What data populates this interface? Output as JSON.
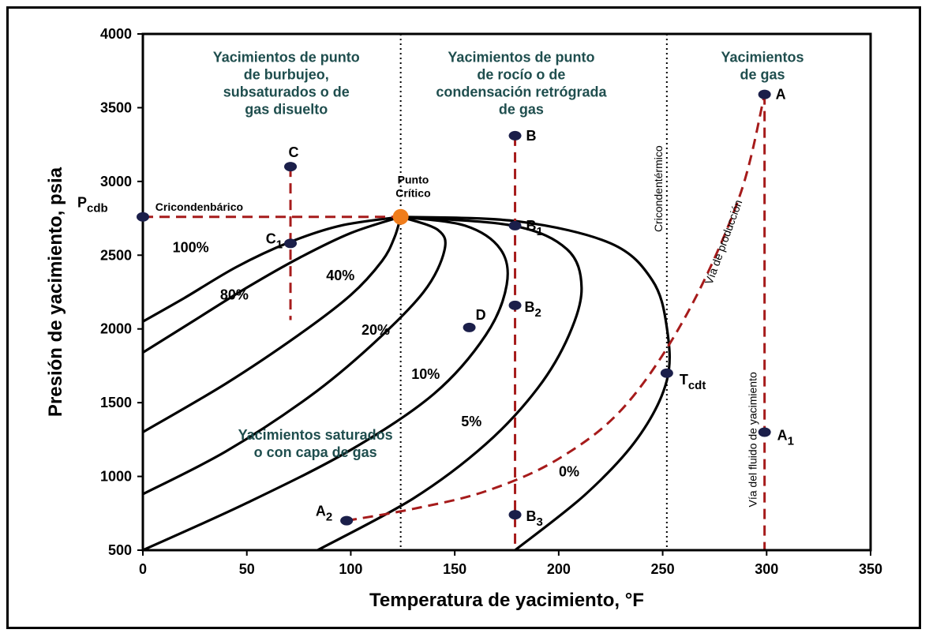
{
  "chart_data": {
    "type": "line",
    "title": "",
    "xlabel": "Temperatura de yacimiento, °F",
    "ylabel": "Presión de yacimiento, psia",
    "xlim": [
      0,
      350
    ],
    "ylim": [
      500,
      4000
    ],
    "x_ticks": [
      0,
      50,
      100,
      150,
      200,
      250,
      300,
      350
    ],
    "y_ticks": [
      500,
      1000,
      1500,
      2000,
      2500,
      3000,
      3500,
      4000
    ],
    "critical_point": {
      "x": 124,
      "y": 2760,
      "label": "Punto Crítico"
    },
    "cricondenbar": {
      "label_main": "P",
      "label_sub": "cdb",
      "text": "Cricondenbárico",
      "y": 2760
    },
    "cricondentherm": {
      "label_main": "T",
      "label_sub": "cdt",
      "text": "Cricondentérmico",
      "x": 252,
      "y": 1700
    },
    "series": [
      {
        "name": "100%",
        "points": [
          [
            0,
            2050
          ],
          [
            20,
            2210
          ],
          [
            45,
            2420
          ],
          [
            70,
            2585
          ],
          [
            95,
            2700
          ],
          [
            124,
            2760
          ]
        ]
      },
      {
        "name": "80%",
        "points": [
          [
            0,
            1840
          ],
          [
            25,
            2060
          ],
          [
            50,
            2280
          ],
          [
            75,
            2480
          ],
          [
            100,
            2650
          ],
          [
            124,
            2760
          ]
        ]
      },
      {
        "name": "40%",
        "points": [
          [
            0,
            1300
          ],
          [
            40,
            1630
          ],
          [
            75,
            1960
          ],
          [
            100,
            2230
          ],
          [
            115,
            2460
          ],
          [
            121,
            2620
          ],
          [
            124,
            2760
          ]
        ]
      },
      {
        "name": "20%",
        "points": [
          [
            0,
            880
          ],
          [
            40,
            1170
          ],
          [
            80,
            1540
          ],
          [
            110,
            1890
          ],
          [
            135,
            2250
          ],
          [
            145,
            2530
          ],
          [
            142,
            2670
          ],
          [
            124,
            2760
          ]
        ]
      },
      {
        "name": "10%",
        "points": [
          [
            0,
            500
          ],
          [
            50,
            820
          ],
          [
            100,
            1180
          ],
          [
            140,
            1560
          ],
          [
            165,
            1960
          ],
          [
            175,
            2300
          ],
          [
            172,
            2540
          ],
          [
            155,
            2700
          ],
          [
            124,
            2760
          ]
        ]
      },
      {
        "name": "5%",
        "points": [
          [
            84,
            500
          ],
          [
            130,
            850
          ],
          [
            165,
            1220
          ],
          [
            190,
            1600
          ],
          [
            205,
            1960
          ],
          [
            211,
            2280
          ],
          [
            204,
            2540
          ],
          [
            178,
            2700
          ],
          [
            124,
            2760
          ]
        ]
      },
      {
        "name": "0%",
        "points": [
          [
            179,
            500
          ],
          [
            213,
            880
          ],
          [
            238,
            1260
          ],
          [
            252,
            1650
          ],
          [
            252,
            2010
          ],
          [
            245,
            2330
          ],
          [
            225,
            2580
          ],
          [
            180,
            2730
          ],
          [
            124,
            2760
          ]
        ]
      }
    ],
    "curve_labels": [
      {
        "text": "100%",
        "x": 23,
        "y": 2520
      },
      {
        "text": "80%",
        "x": 44,
        "y": 2200
      },
      {
        "text": "40%",
        "x": 95,
        "y": 2330
      },
      {
        "text": "20%",
        "x": 112,
        "y": 1960
      },
      {
        "text": "10%",
        "x": 136,
        "y": 1660
      },
      {
        "text": "5%",
        "x": 158,
        "y": 1340
      },
      {
        "text": "0%",
        "x": 205,
        "y": 1000
      }
    ],
    "points": [
      {
        "label": "A",
        "sub": "",
        "x": 299,
        "y": 3590
      },
      {
        "label": "A",
        "sub": "1",
        "x": 299,
        "y": 1300
      },
      {
        "label": "A",
        "sub": "2",
        "x": 98,
        "y": 700
      },
      {
        "label": "B",
        "sub": "",
        "x": 179,
        "y": 3310
      },
      {
        "label": "B",
        "sub": "1",
        "x": 179,
        "y": 2700
      },
      {
        "label": "B",
        "sub": "2",
        "x": 179,
        "y": 2160
      },
      {
        "label": "B",
        "sub": "3",
        "x": 179,
        "y": 740
      },
      {
        "label": "C",
        "sub": "",
        "x": 71,
        "y": 3100
      },
      {
        "label": "C",
        "sub": "1",
        "x": 71,
        "y": 2580
      },
      {
        "label": "D",
        "sub": "",
        "x": 157,
        "y": 2010
      },
      {
        "label": "P",
        "sub": "cdb",
        "x": 0,
        "y": 2760
      },
      {
        "label": "T",
        "sub": "cdt",
        "x": 252,
        "y": 1700
      }
    ],
    "paths": {
      "via_produccion": {
        "label": "Vía de producción",
        "points": [
          [
            98,
            700
          ],
          [
            130,
            780
          ],
          [
            165,
            900
          ],
          [
            200,
            1120
          ],
          [
            232,
            1480
          ],
          [
            262,
            2110
          ],
          [
            287,
            2900
          ],
          [
            299,
            3590
          ]
        ]
      },
      "via_fluido": {
        "label": "Vía del fluido de yacimiento"
      }
    },
    "regions": [
      {
        "lines": [
          "Yacimientos de punto",
          "de burbujeo,",
          "subsaturados o de",
          "gas disuelto"
        ],
        "x": 69,
        "y": 3810
      },
      {
        "lines": [
          "Yacimientos de punto",
          "de rocío o de",
          "condensación retrógrada",
          "de gas"
        ],
        "x": 182,
        "y": 3810
      },
      {
        "lines": [
          "Yacimientos",
          "de gas"
        ],
        "x": 298,
        "y": 3810
      },
      {
        "lines": [
          "Yacimientos saturados",
          "o con capa de gas"
        ],
        "x": 83,
        "y": 1250
      }
    ],
    "colors": {
      "curves": "#000000",
      "dashed": "#a61b1b",
      "points": "#1b1f4a",
      "critical": "#f07d1b",
      "region_text": "#1f4e4e"
    },
    "grid": false
  }
}
